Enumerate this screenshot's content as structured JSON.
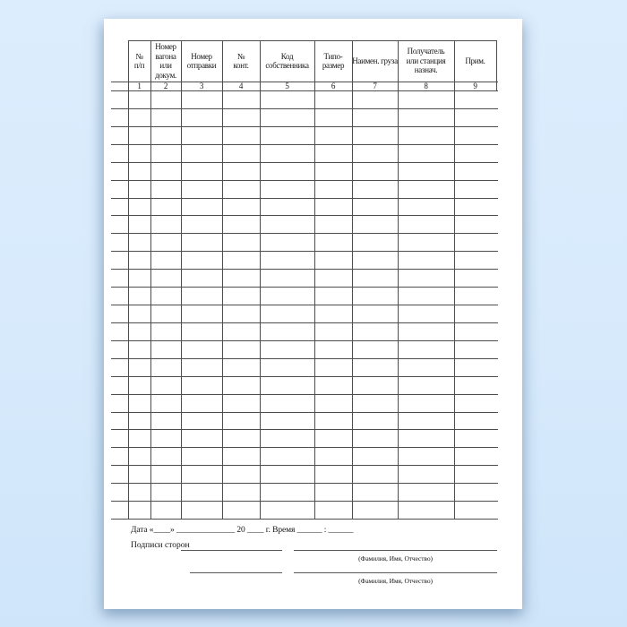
{
  "page": {
    "background_color": "#d7eafc",
    "sheet_color": "#ffffff",
    "grid_line_color": "#4d4d4d"
  },
  "table": {
    "columns": [
      {
        "number": "1",
        "label": "№\nп/п"
      },
      {
        "number": "2",
        "label": "Номер\nвагона\nили\nдокум."
      },
      {
        "number": "3",
        "label": "Номер\nотправки"
      },
      {
        "number": "4",
        "label": "№\nконт."
      },
      {
        "number": "5",
        "label": "Код\nсобственника"
      },
      {
        "number": "6",
        "label": "Типо-\nразмер"
      },
      {
        "number": "7",
        "label": "Наимен. груза"
      },
      {
        "number": "8",
        "label": "Получатель\nили станция\nназнач."
      },
      {
        "number": "9",
        "label": "Прим."
      }
    ],
    "empty_data_rows": 24
  },
  "footer": {
    "date_line": "Дата «____» ______________ 20 ____ г.  Время ______ : ______",
    "signatures_label": "Подписи сторон",
    "fio_caption": "(Фамилия, Имя, Отчество)"
  }
}
